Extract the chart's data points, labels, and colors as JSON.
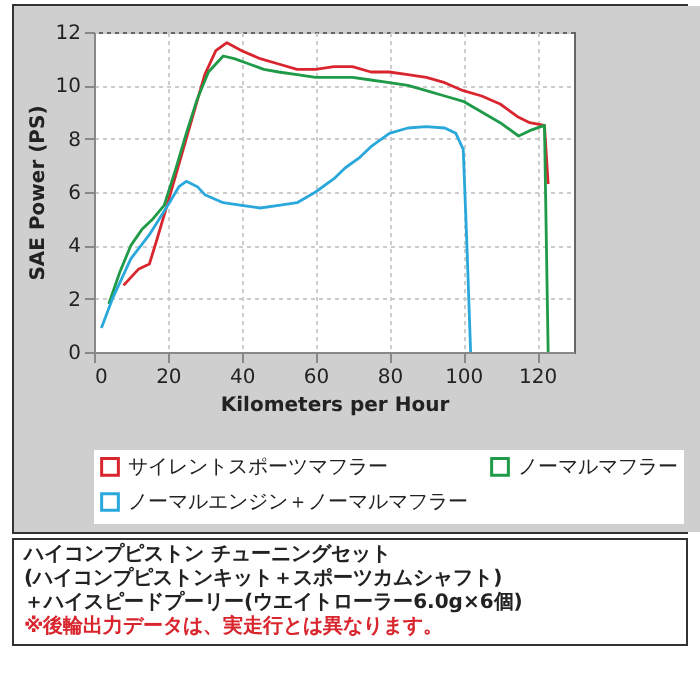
{
  "chart_data": {
    "type": "line",
    "xlabel": "Kilometers per Hour",
    "ylabel": "SAE Power (PS)",
    "xlim": [
      0,
      130
    ],
    "xticks": [
      0,
      20,
      40,
      60,
      80,
      100,
      120
    ],
    "ylim": [
      0,
      12
    ],
    "yticks": [
      0,
      2,
      4,
      6,
      8,
      10,
      12
    ],
    "grid": true,
    "legend": "bottom",
    "marker": "none",
    "line_style": "solid",
    "series": [
      {
        "name": "サイレントスポーツマフラー",
        "color": "#d9262e",
        "x": [
          8,
          12,
          15,
          17,
          20,
          25,
          30,
          33,
          36,
          40,
          45,
          50,
          55,
          60,
          65,
          70,
          75,
          80,
          85,
          90,
          95,
          100,
          105,
          110,
          115,
          118,
          122,
          123
        ],
        "values": [
          2.5,
          3.1,
          3.3,
          4.2,
          5.6,
          8.0,
          10.4,
          11.3,
          11.6,
          11.3,
          11.0,
          10.8,
          10.6,
          10.6,
          10.7,
          10.7,
          10.5,
          10.5,
          10.4,
          10.3,
          10.1,
          9.8,
          9.6,
          9.3,
          8.8,
          8.6,
          8.5,
          6.3
        ]
      },
      {
        "name": "ノーマルマフラー",
        "color": "#1f9a48",
        "x": [
          4,
          7,
          10,
          13,
          16,
          19,
          22,
          25,
          28,
          31,
          35,
          38,
          42,
          46,
          50,
          55,
          60,
          65,
          70,
          75,
          80,
          85,
          90,
          95,
          100,
          105,
          110,
          115,
          118,
          122,
          123
        ],
        "values": [
          1.8,
          3.0,
          4.0,
          4.6,
          5.0,
          5.5,
          6.8,
          8.2,
          9.5,
          10.5,
          11.1,
          11.0,
          10.8,
          10.6,
          10.5,
          10.4,
          10.3,
          10.3,
          10.3,
          10.2,
          10.1,
          10.0,
          9.8,
          9.6,
          9.4,
          9.0,
          8.6,
          8.1,
          8.3,
          8.5,
          0
        ]
      },
      {
        "name": "ノーマルエンジン＋ノーマルマフラー",
        "color": "#2aa8dc",
        "x": [
          2,
          5,
          10,
          15,
          20,
          23,
          25,
          28,
          30,
          35,
          40,
          45,
          50,
          55,
          60,
          65,
          68,
          72,
          75,
          80,
          85,
          90,
          95,
          98,
          100,
          101,
          102
        ],
        "values": [
          0.9,
          2.0,
          3.5,
          4.4,
          5.5,
          6.2,
          6.4,
          6.2,
          5.9,
          5.6,
          5.5,
          5.4,
          5.5,
          5.6,
          6.0,
          6.5,
          6.9,
          7.3,
          7.7,
          8.2,
          8.4,
          8.45,
          8.4,
          8.2,
          7.6,
          4,
          0
        ]
      }
    ],
    "annotations": [
      "ハイコンプピストン チューニングセット",
      "(ハイコンプピストンキット＋スポーツカムシャフト)",
      "＋ハイスピードプーリー(ウエイトローラー6.0g×6個)",
      "※後輪出力データは、実走行とは異なります。"
    ]
  }
}
